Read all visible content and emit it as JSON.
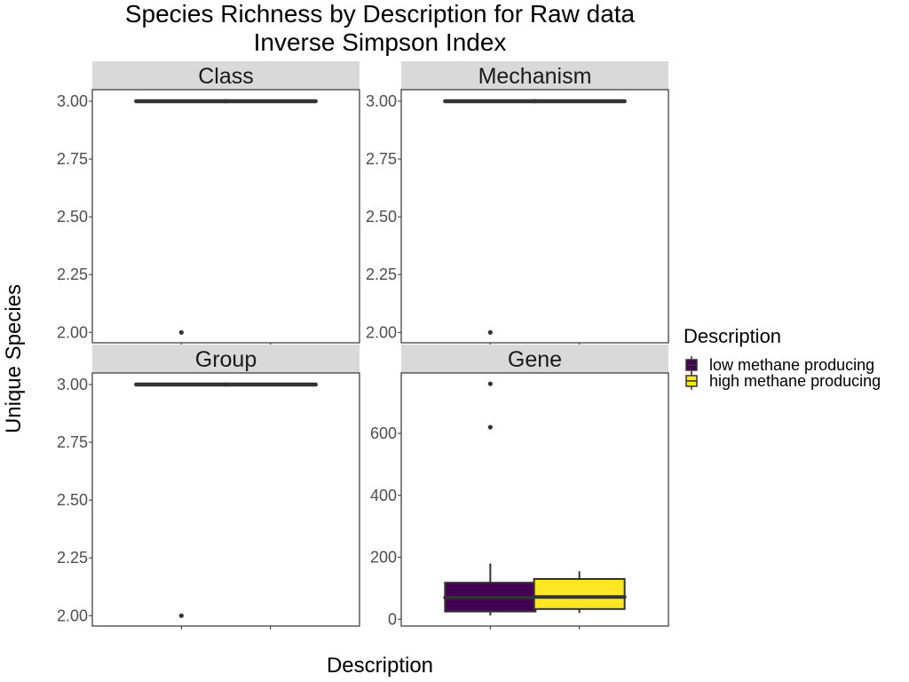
{
  "chart_data": {
    "type": "box",
    "title": [
      "Species Richness by Description for Raw data",
      "Inverse Simpson Index"
    ],
    "xlabel": "Description",
    "ylabel": "Unique Species",
    "legend": {
      "title": "Description",
      "position": "right",
      "entries": [
        {
          "name": "low methane producing",
          "color": "#440154"
        },
        {
          "name": "high methane producing",
          "color": "#FDE725"
        }
      ]
    },
    "categories": [
      "low methane producing",
      "high methane producing"
    ],
    "grid": false,
    "panels": [
      {
        "name": "Class",
        "ylim": [
          1.955,
          3.05
        ],
        "yticks": [
          2.0,
          2.25,
          2.5,
          2.75,
          3.0
        ],
        "yticklabels": [
          "2.00",
          "2.25",
          "2.50",
          "2.75",
          "3.00"
        ],
        "boxes": [
          {
            "q1": 3,
            "median": 3,
            "q3": 3,
            "whisker_low": 3,
            "whisker_high": 3,
            "outliers": [
              2
            ]
          },
          {
            "q1": 3,
            "median": 3,
            "q3": 3,
            "whisker_low": 3,
            "whisker_high": 3,
            "outliers": []
          }
        ]
      },
      {
        "name": "Mechanism",
        "ylim": [
          1.955,
          3.05
        ],
        "yticks": [
          2.0,
          2.25,
          2.5,
          2.75,
          3.0
        ],
        "yticklabels": [
          "2.00",
          "2.25",
          "2.50",
          "2.75",
          "3.00"
        ],
        "boxes": [
          {
            "q1": 3,
            "median": 3,
            "q3": 3,
            "whisker_low": 3,
            "whisker_high": 3,
            "outliers": [
              2
            ]
          },
          {
            "q1": 3,
            "median": 3,
            "q3": 3,
            "whisker_low": 3,
            "whisker_high": 3,
            "outliers": []
          }
        ]
      },
      {
        "name": "Group",
        "ylim": [
          1.955,
          3.05
        ],
        "yticks": [
          2.0,
          2.25,
          2.5,
          2.75,
          3.0
        ],
        "yticklabels": [
          "2.00",
          "2.25",
          "2.50",
          "2.75",
          "3.00"
        ],
        "boxes": [
          {
            "q1": 3,
            "median": 3,
            "q3": 3,
            "whisker_low": 3,
            "whisker_high": 3,
            "outliers": [
              2
            ]
          },
          {
            "q1": 3,
            "median": 3,
            "q3": 3,
            "whisker_low": 3,
            "whisker_high": 3,
            "outliers": []
          }
        ]
      },
      {
        "name": "Gene",
        "ylim": [
          -22,
          795
        ],
        "yticks": [
          0,
          200,
          400,
          600
        ],
        "yticklabels": [
          "0",
          "200",
          "400",
          "600"
        ],
        "boxes": [
          {
            "q1": 25,
            "median": 70,
            "q3": 118,
            "whisker_low": 12,
            "whisker_high": 180,
            "outliers": [
              620,
              760
            ]
          },
          {
            "q1": 33,
            "median": 72,
            "q3": 130,
            "whisker_low": 20,
            "whisker_high": 155,
            "outliers": []
          }
        ]
      }
    ]
  }
}
